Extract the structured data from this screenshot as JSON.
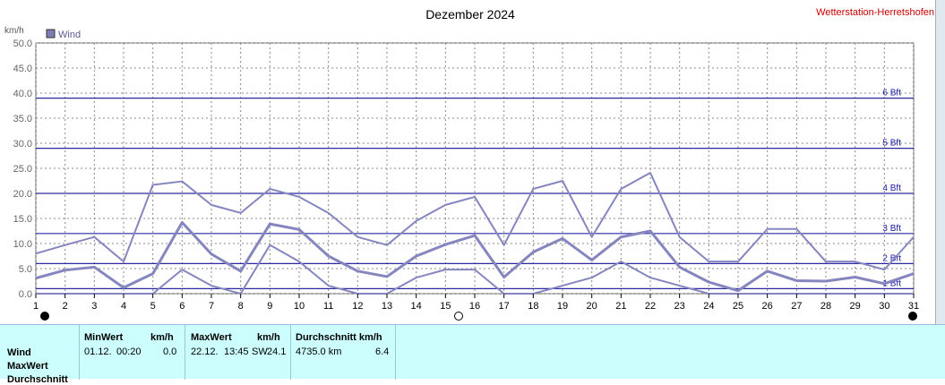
{
  "chart_data": {
    "type": "line",
    "title": "Dezember 2024",
    "station": "Wetterstation-Herretshofen",
    "ylabel": "km/h",
    "ylim": [
      0,
      50
    ],
    "yticks": [
      "0.0",
      "5.0",
      "10.0",
      "15.0",
      "20.0",
      "25.0",
      "30.0",
      "35.0",
      "40.0",
      "45.0",
      "50.0"
    ],
    "x": [
      1,
      2,
      3,
      4,
      5,
      6,
      7,
      8,
      9,
      10,
      11,
      12,
      13,
      14,
      15,
      16,
      17,
      18,
      19,
      20,
      21,
      22,
      23,
      24,
      25,
      26,
      27,
      28,
      29,
      30,
      31
    ],
    "xticks": [
      "1",
      "2",
      "3",
      "4",
      "5",
      "6",
      "7",
      "8",
      "9",
      "10",
      "11",
      "12",
      "13",
      "14",
      "15",
      "16",
      "17",
      "18",
      "19",
      "20",
      "21",
      "22",
      "23",
      "24",
      "25",
      "26",
      "27",
      "28",
      "29",
      "30",
      "31"
    ],
    "legend": "Wind",
    "series": [
      {
        "values": [
          8.0,
          9.7,
          11.3,
          6.4,
          21.7,
          22.4,
          17.7,
          16.1,
          20.9,
          19.3,
          16.1,
          11.3,
          9.7,
          14.5,
          17.7,
          19.3,
          9.7,
          20.9,
          22.5,
          11.3,
          20.9,
          24.1,
          11.3,
          6.4,
          6.4,
          12.9,
          12.9,
          6.4,
          6.4,
          4.8,
          11.3
        ]
      },
      {
        "values": [
          3.1,
          4.7,
          5.3,
          1.2,
          4.0,
          14.2,
          7.9,
          4.5,
          13.9,
          12.8,
          7.5,
          4.5,
          3.4,
          7.5,
          9.8,
          11.6,
          3.3,
          8.3,
          11.0,
          6.7,
          11.3,
          12.5,
          5.3,
          2.3,
          0.6,
          4.5,
          2.6,
          2.5,
          3.3,
          2.0,
          4.0
        ]
      },
      {
        "values": [
          0,
          0,
          0,
          0,
          0,
          4.8,
          1.6,
          0,
          9.7,
          6.4,
          1.6,
          0,
          0,
          3.2,
          4.8,
          4.8,
          0,
          0,
          1.6,
          3.2,
          6.4,
          3.2,
          1.6,
          0,
          0,
          0,
          0,
          0,
          0,
          0,
          0
        ]
      }
    ],
    "beaufort": [
      {
        "label": "1 Bft",
        "value": 1
      },
      {
        "label": "2 Bft",
        "value": 6
      },
      {
        "label": "3 Bft",
        "value": 12
      },
      {
        "label": "4 Bft",
        "value": 20
      },
      {
        "label": "5 Bft",
        "value": 29
      },
      {
        "label": "6 Bft",
        "value": 39
      }
    ],
    "grid": true
  },
  "stats": {
    "row_labels": [
      "Wind",
      "MaxWert",
      "Durchschnitt"
    ],
    "min": {
      "header": "MinWert",
      "unit": "km/h",
      "date": "01.12.",
      "time": "00:20",
      "value": "0.0"
    },
    "max": {
      "header": "MaxWert",
      "unit": "km/h",
      "date": "22.12.",
      "time": "13:45",
      "dir": "SW",
      "value": "24.1"
    },
    "avg": {
      "header": "Durchschnitt km/h",
      "distance": "4735.0 km",
      "value": "6.4"
    }
  }
}
